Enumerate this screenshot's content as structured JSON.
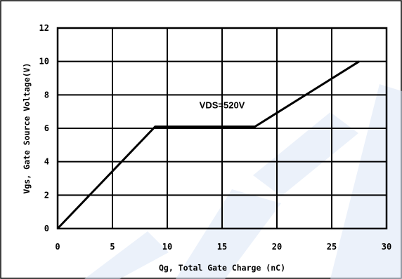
{
  "chart_data": {
    "type": "line",
    "title": "",
    "xlabel": "Qg, Total Gate Charge (nC)",
    "ylabel": "Vgs,   Gate Source Voltage(V)",
    "xlim": [
      0,
      30
    ],
    "ylim": [
      0,
      12
    ],
    "x_ticks": [
      0,
      5,
      10,
      15,
      20,
      25,
      30
    ],
    "y_ticks": [
      0,
      2,
      4,
      6,
      8,
      10,
      12
    ],
    "grid": true,
    "series": [
      {
        "x": [
          0,
          8.9,
          18.0,
          27.5
        ],
        "y": [
          0,
          6.1,
          6.1,
          10.0
        ]
      }
    ],
    "annotations": [
      {
        "text": "VDS=520V",
        "x": 15,
        "y": 7.2
      }
    ],
    "colors": {
      "line": "#000000",
      "grid": "#000000",
      "watermark": "#dbe6f6"
    }
  }
}
